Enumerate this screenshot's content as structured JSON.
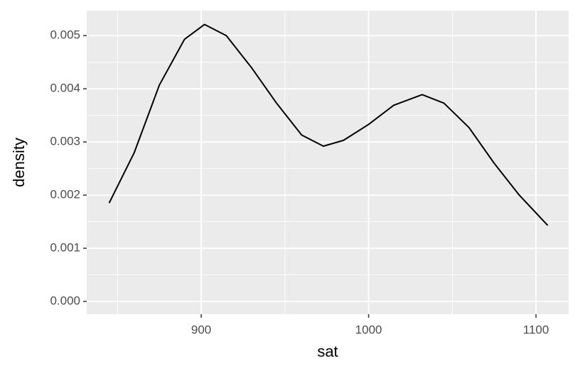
{
  "chart_data": {
    "type": "line",
    "x_label": "sat",
    "y_label": "density",
    "x": [
      845,
      860,
      875,
      890,
      902,
      915,
      930,
      945,
      960,
      973,
      985,
      1000,
      1015,
      1032,
      1045,
      1060,
      1075,
      1090,
      1107
    ],
    "series": [
      {
        "color": "#000000",
        "values": [
          0.00185,
          0.0028,
          0.00407,
          0.00493,
          0.00521,
          0.005,
          0.0044,
          0.00373,
          0.00313,
          0.00292,
          0.00303,
          0.00333,
          0.00369,
          0.00389,
          0.00373,
          0.00327,
          0.0026,
          0.002,
          0.00143
        ]
      }
    ],
    "xlim": [
      831.6,
      1119.5
    ],
    "ylim": [
      -0.00024,
      0.00547
    ],
    "xticks": [
      900,
      1000,
      1100
    ],
    "yticks": [
      {
        "value": 0,
        "label": "0.000"
      },
      0.001,
      0.002,
      0.003,
      0.004,
      0.005
    ],
    "minor_xticks": [
      850,
      950,
      1050
    ],
    "minor_yticks": [
      0.0005,
      0.0015,
      0.0025,
      0.0035,
      0.0045
    ],
    "grid": true
  }
}
